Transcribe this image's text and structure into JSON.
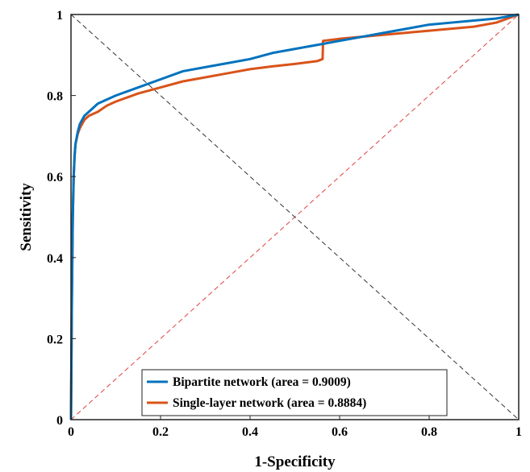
{
  "chart_data": {
    "type": "line",
    "title": "",
    "xlabel": "1-Specificity",
    "ylabel": "Sensitivity",
    "xlim": [
      0,
      1
    ],
    "ylim": [
      0,
      1
    ],
    "x_ticks": [
      "0",
      "0.2",
      "0.4",
      "0.6",
      "0.8",
      "1"
    ],
    "y_ticks": [
      "0",
      "0.2",
      "0.4",
      "0.6",
      "0.8",
      "1"
    ],
    "grid": false,
    "legend_position": "bottom-center",
    "series": [
      {
        "name": "Bipartite network (area = 0.9009)",
        "color": "#0072bd",
        "x": [
          0,
          0.002,
          0.004,
          0.006,
          0.008,
          0.01,
          0.015,
          0.02,
          0.03,
          0.04,
          0.06,
          0.08,
          0.1,
          0.15,
          0.2,
          0.25,
          0.3,
          0.35,
          0.4,
          0.45,
          0.5,
          0.55,
          0.6,
          0.65,
          0.7,
          0.75,
          0.8,
          0.85,
          0.9,
          0.95,
          1.0
        ],
        "y": [
          0,
          0.3,
          0.5,
          0.6,
          0.65,
          0.68,
          0.71,
          0.73,
          0.75,
          0.76,
          0.78,
          0.79,
          0.8,
          0.82,
          0.84,
          0.86,
          0.87,
          0.88,
          0.89,
          0.905,
          0.915,
          0.925,
          0.935,
          0.945,
          0.955,
          0.965,
          0.975,
          0.98,
          0.985,
          0.99,
          1.0
        ]
      },
      {
        "name": "Single-layer network (area = 0.8884)",
        "color": "#d95319",
        "x": [
          0,
          0.002,
          0.004,
          0.006,
          0.008,
          0.01,
          0.015,
          0.02,
          0.03,
          0.04,
          0.06,
          0.08,
          0.1,
          0.15,
          0.2,
          0.25,
          0.3,
          0.35,
          0.4,
          0.45,
          0.5,
          0.55,
          0.562,
          0.563,
          0.6,
          0.65,
          0.7,
          0.75,
          0.8,
          0.85,
          0.9,
          0.95,
          1.0
        ],
        "y": [
          0,
          0.3,
          0.5,
          0.6,
          0.65,
          0.68,
          0.705,
          0.72,
          0.74,
          0.75,
          0.76,
          0.775,
          0.785,
          0.805,
          0.82,
          0.835,
          0.845,
          0.855,
          0.865,
          0.872,
          0.878,
          0.885,
          0.89,
          0.935,
          0.94,
          0.945,
          0.95,
          0.955,
          0.96,
          0.965,
          0.97,
          0.98,
          1.0
        ]
      }
    ],
    "reference_lines": [
      {
        "color": "#e04040",
        "style": "dashed",
        "x": [
          0,
          1
        ],
        "y": [
          0,
          1
        ]
      },
      {
        "color": "#333333",
        "style": "dashed",
        "x": [
          0,
          1
        ],
        "y": [
          1,
          0
        ]
      }
    ]
  }
}
